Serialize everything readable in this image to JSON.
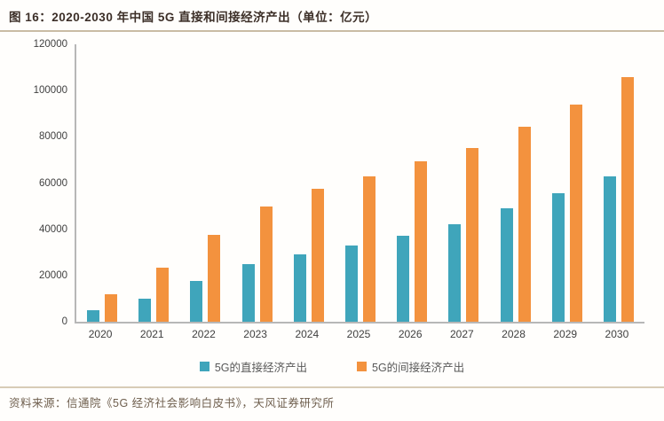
{
  "header": {
    "title": "图 16：2020-2030 年中国 5G 直接和间接经济产出（单位：亿元）"
  },
  "footer": {
    "source": "资料来源：信通院《5G 经济社会影响白皮书》，天风证券研究所"
  },
  "colors": {
    "direct": "#3fa5bb",
    "indirect": "#f3923e",
    "title_text": "#3c2f28",
    "source_text": "#6e5e4d",
    "axis_line": "#b7b7b7",
    "divider": "#c9bca4"
  },
  "chart_data": {
    "type": "bar",
    "title": "图 16：2020-2030 年中国 5G 直接和间接经济产出（单位：亿元）",
    "xlabel": "",
    "ylabel": "",
    "categories": [
      "2020",
      "2021",
      "2022",
      "2023",
      "2024",
      "2025",
      "2026",
      "2027",
      "2028",
      "2029",
      "2030"
    ],
    "series": [
      {
        "name": "5G的直接经济产出",
        "color": "#3fa5bb",
        "values": [
          4840,
          10000,
          17600,
          24900,
          29100,
          33000,
          37300,
          42200,
          49100,
          55600,
          63000
        ]
      },
      {
        "name": "5G的间接经济产出",
        "color": "#f3923e",
        "values": [
          12000,
          23400,
          37600,
          49800,
          57500,
          63000,
          69400,
          75000,
          84400,
          94000,
          106000
        ]
      }
    ],
    "ylim": [
      0,
      120000
    ],
    "ytick_step": 20000,
    "yticks": [
      "0",
      "20000",
      "40000",
      "60000",
      "80000",
      "100000",
      "120000"
    ],
    "grid": false,
    "legend_position": "bottom"
  }
}
